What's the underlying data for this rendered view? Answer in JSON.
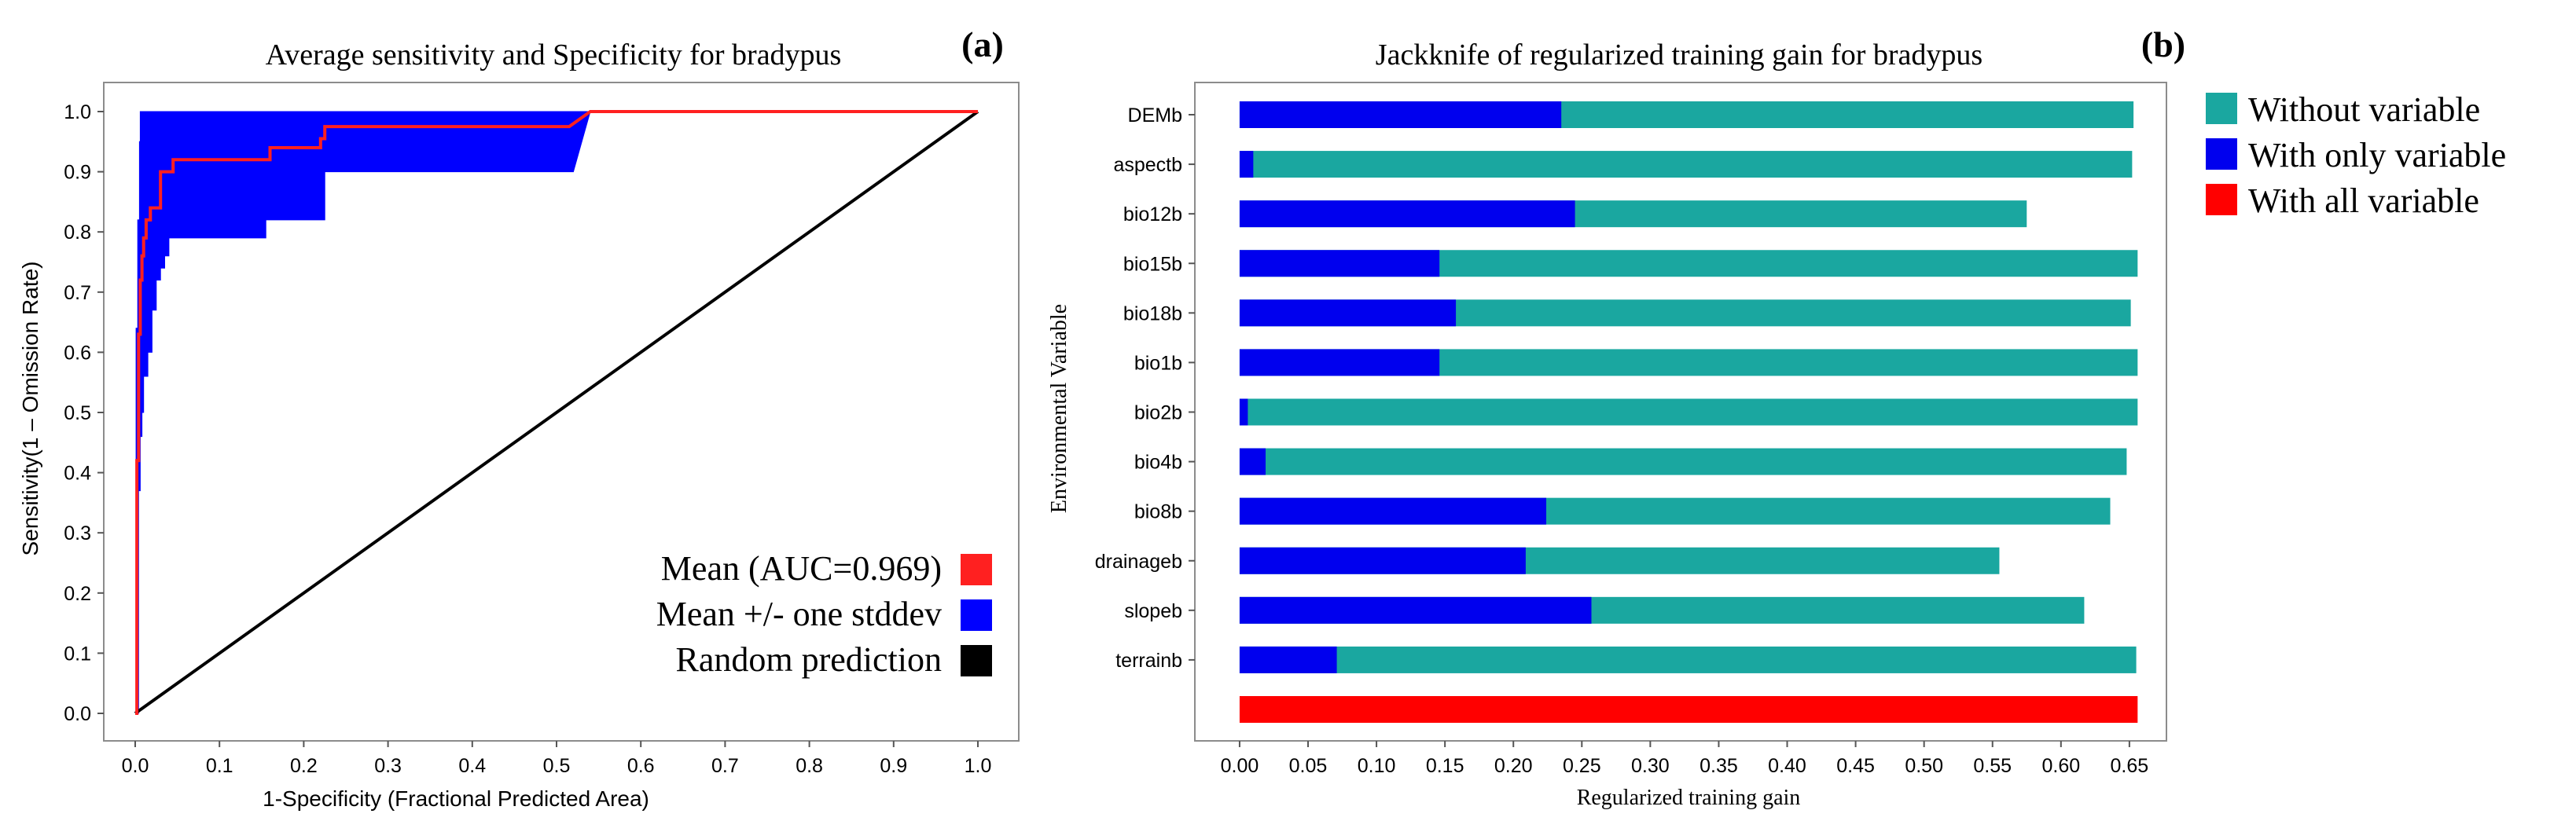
{
  "chart_data": [
    {
      "type": "line",
      "panel_tag": "(a)",
      "title": "Average sensitivity and Specificity for bradypus",
      "xlabel": "1-Specificity (Fractional Predicted Area)",
      "ylabel": "Sensitivity(1 – Omission Rate)",
      "xlim": [
        0,
        1.0
      ],
      "ylim": [
        0,
        1.0
      ],
      "x_ticks": [
        "0.0",
        "0.1",
        "0.2",
        "0.3",
        "0.4",
        "0.5",
        "0.6",
        "0.7",
        "0.8",
        "0.9",
        "1.0"
      ],
      "y_ticks": [
        "0.0",
        "0.1",
        "0.2",
        "0.3",
        "0.4",
        "0.5",
        "0.6",
        "0.7",
        "0.8",
        "0.9",
        "1.0"
      ],
      "legend_position": "bottom-right",
      "series": [
        {
          "name": "Mean (AUC=0.969)",
          "color": "#ff2020",
          "x": [
            0,
            0.002,
            0.002,
            0.004,
            0.004,
            0.006,
            0.006,
            0.008,
            0.008,
            0.01,
            0.01,
            0.013,
            0.013,
            0.018,
            0.018,
            0.03,
            0.03,
            0.045,
            0.045,
            0.15,
            0.15,
            0.16,
            0.16,
            0.22,
            0.22,
            0.225,
            0.225,
            0.515,
            0.54,
            1.0
          ],
          "y": [
            0,
            0,
            0.42,
            0.42,
            0.63,
            0.63,
            0.72,
            0.72,
            0.76,
            0.76,
            0.79,
            0.79,
            0.82,
            0.82,
            0.84,
            0.84,
            0.9,
            0.9,
            0.92,
            0.92,
            0.92,
            0.92,
            0.94,
            0.94,
            0.955,
            0.955,
            0.975,
            0.975,
            1.0,
            1.0
          ]
        },
        {
          "name": "Mean +/- one stddev",
          "color": "#0000ff",
          "upper": {
            "x": [
              0,
              0.001,
              0.001,
              0.003,
              0.003,
              0.005,
              0.005,
              0.006,
              0.006,
              1.0
            ],
            "y": [
              0,
              0,
              0.64,
              0.64,
              0.82,
              0.82,
              0.95,
              0.95,
              1.0,
              1.0
            ]
          },
          "lower": {
            "x": [
              0,
              0.004,
              0.004,
              0.006,
              0.006,
              0.008,
              0.008,
              0.01,
              0.01,
              0.015,
              0.015,
              0.02,
              0.02,
              0.025,
              0.025,
              0.03,
              0.03,
              0.035,
              0.035,
              0.04,
              0.04,
              0.155,
              0.155,
              0.225,
              0.225,
              0.52,
              0.54,
              1.0
            ],
            "y": [
              0,
              0,
              0.37,
              0.37,
              0.46,
              0.46,
              0.5,
              0.5,
              0.56,
              0.56,
              0.6,
              0.6,
              0.67,
              0.67,
              0.72,
              0.72,
              0.74,
              0.74,
              0.76,
              0.76,
              0.79,
              0.79,
              0.82,
              0.82,
              0.9,
              0.9,
              1.0,
              1.0
            ]
          }
        },
        {
          "name": "Random prediction",
          "color": "#000000",
          "x": [
            0,
            1.0
          ],
          "y": [
            0,
            1.0
          ]
        }
      ]
    },
    {
      "type": "bar",
      "orientation": "horizontal",
      "panel_tag": "(b)",
      "title": "Jackknife of regularized training gain for bradypus",
      "xlabel": "Regularized training gain",
      "ylabel": "Environmental Variable",
      "xlim": [
        -0.008,
        0.665
      ],
      "x_ticks": [
        "0.00",
        "0.05",
        "0.10",
        "0.15",
        "0.20",
        "0.25",
        "0.30",
        "0.35",
        "0.40",
        "0.45",
        "0.50",
        "0.55",
        "0.60",
        "0.65"
      ],
      "categories": [
        "DEMb",
        "aspectb",
        "bio12b",
        "bio15b",
        "bio18b",
        "bio1b",
        "bio2b",
        "bio4b",
        "bio8b",
        "drainageb",
        "slopeb",
        "terrainb",
        ""
      ],
      "legend_position": "right",
      "series": [
        {
          "name": "Without variable",
          "color": "#1aa7a0",
          "values": [
            0.653,
            0.652,
            0.575,
            0.656,
            0.651,
            0.656,
            0.656,
            0.648,
            0.636,
            0.555,
            0.617,
            0.655,
            null
          ]
        },
        {
          "name": "With only variable",
          "color": "#0000ee",
          "values": [
            0.235,
            0.01,
            0.245,
            0.146,
            0.158,
            0.146,
            0.006,
            0.019,
            0.224,
            0.209,
            0.257,
            0.071,
            null
          ]
        },
        {
          "name": "With all variable",
          "color": "#ff0000",
          "values": [
            null,
            null,
            null,
            null,
            null,
            null,
            null,
            null,
            null,
            null,
            null,
            null,
            0.656
          ]
        }
      ]
    }
  ]
}
